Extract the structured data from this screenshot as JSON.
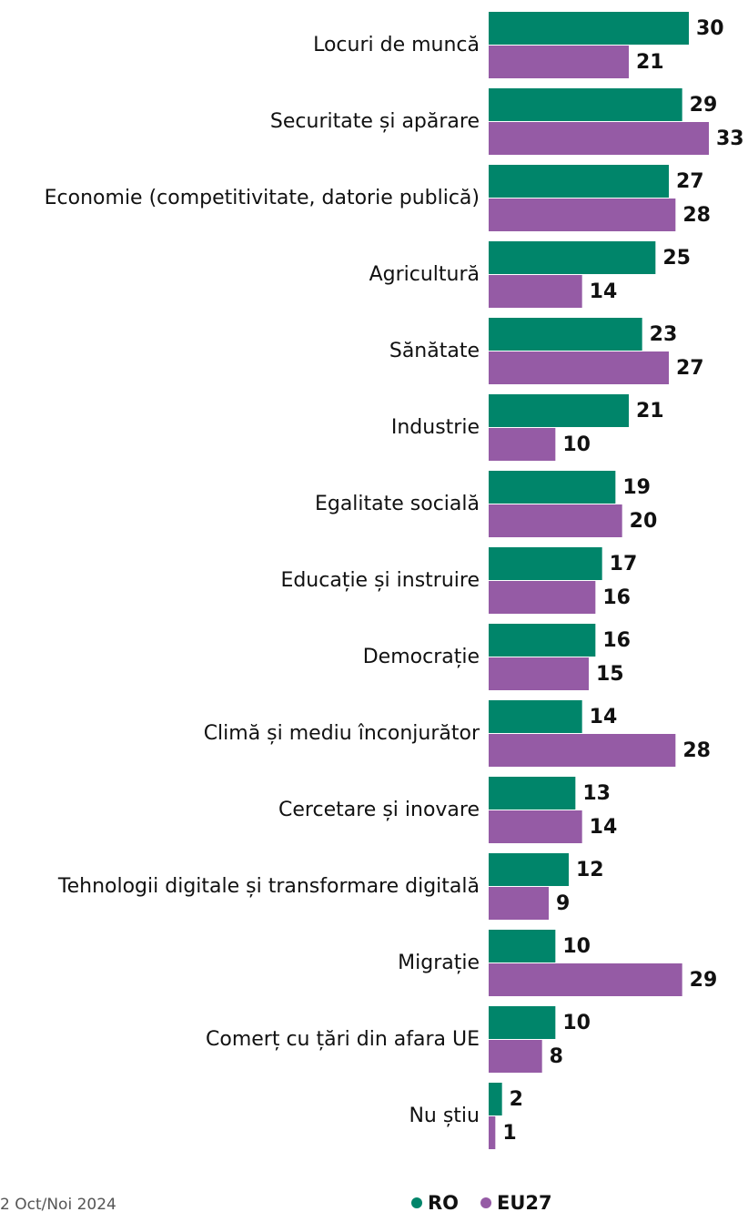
{
  "chart_data": {
    "type": "bar",
    "orientation": "horizontal",
    "categories": [
      "Locuri de muncă",
      "Securitate și apărare",
      "Economie (competitivitate, datorie publică)",
      "Agricultură",
      "Sănătate",
      "Industrie",
      "Egalitate socială",
      "Educație și instruire",
      "Democrație",
      "Climă și mediu înconjurător",
      "Cercetare și inovare",
      "Tehnologii digitale și transformare digitală",
      "Migrație",
      "Comerț cu țări din afara UE",
      "Nu știu"
    ],
    "series": [
      {
        "name": "RO",
        "color": "#00856a",
        "values": [
          30,
          29,
          27,
          25,
          23,
          21,
          19,
          17,
          16,
          14,
          13,
          12,
          10,
          10,
          2
        ]
      },
      {
        "name": "EU27",
        "color": "#955ba5",
        "values": [
          21,
          33,
          28,
          14,
          27,
          10,
          20,
          16,
          15,
          28,
          14,
          9,
          29,
          8,
          1
        ]
      }
    ],
    "footnote": "2 Oct/Noi 2024",
    "legend": "bottom"
  }
}
